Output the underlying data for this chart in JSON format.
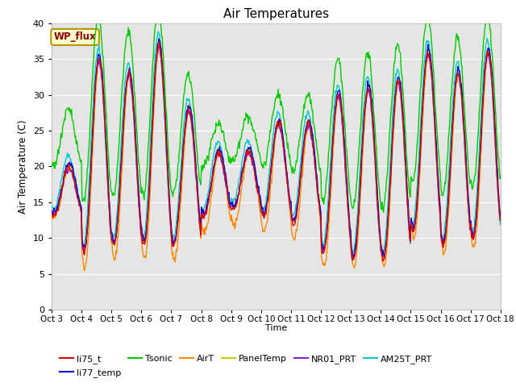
{
  "title": "Air Temperatures",
  "ylabel": "Air Temperature (C)",
  "xlabel": "Time",
  "ylim": [
    0,
    40
  ],
  "yticks": [
    0,
    5,
    10,
    15,
    20,
    25,
    30,
    35,
    40
  ],
  "xtick_labels": [
    "Oct 3",
    "Oct 4",
    "Oct 5",
    "Oct 6",
    "Oct 7",
    "Oct 8",
    "Oct 9",
    "Oct 10",
    "Oct 11",
    "Oct 12",
    "Oct 13",
    "Oct 14",
    "Oct 15",
    "Oct 16",
    "Oct 17",
    "Oct 18"
  ],
  "bg_color": "#e5e5e5",
  "fig_bg": "#ffffff",
  "annotation_text": "WP_flux",
  "annotation_color": "#8b0000",
  "annotation_bg": "#ffffcc",
  "annotation_border": "#b8960c",
  "series": {
    "li75_t": {
      "color": "#dd0000",
      "lw": 1.0
    },
    "li77_temp": {
      "color": "#0000dd",
      "lw": 1.0
    },
    "Tsonic": {
      "color": "#00cc00",
      "lw": 1.0
    },
    "AirT": {
      "color": "#ff8800",
      "lw": 1.0
    },
    "PanelTemp": {
      "color": "#cccc00",
      "lw": 1.0
    },
    "NR01_PRT": {
      "color": "#8822cc",
      "lw": 1.0
    },
    "AM25T_PRT": {
      "color": "#00cccc",
      "lw": 1.0
    }
  },
  "day_mins": [
    13,
    8,
    9,
    9,
    9,
    13,
    14,
    13,
    12,
    8,
    7,
    7,
    11,
    9,
    10,
    10
  ],
  "day_maxes": [
    20,
    35,
    33,
    37,
    28,
    22,
    22,
    26,
    26,
    30,
    31,
    32,
    36,
    33,
    36,
    37
  ],
  "tsonic_extra": [
    8,
    6,
    6,
    5,
    5,
    4,
    5,
    4,
    4,
    5,
    5,
    5,
    5,
    5,
    5,
    5
  ],
  "airt_low_extra": [
    0,
    2,
    2,
    2,
    2,
    2,
    2,
    2,
    2,
    2,
    1,
    1,
    1,
    1,
    1,
    1
  ]
}
